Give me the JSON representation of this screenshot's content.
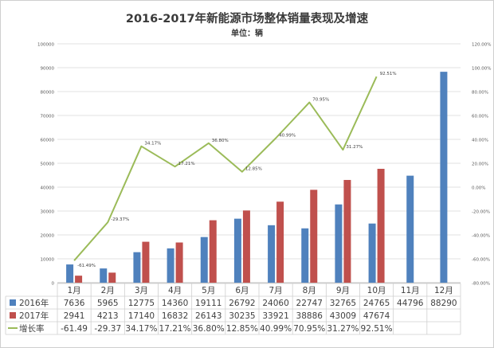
{
  "chart_data": {
    "type": "bar",
    "title": "2016-2017年新能源市场整体销量表现及增速",
    "subtitle": "单位：辆",
    "categories": [
      "1月",
      "2月",
      "3月",
      "4月",
      "5月",
      "6月",
      "7月",
      "8月",
      "9月",
      "10月",
      "11月",
      "12月"
    ],
    "series": [
      {
        "name": "2016年",
        "type": "bar",
        "axis": "left",
        "color": "#4f81bd",
        "values": [
          7636,
          5965,
          12775,
          14360,
          19111,
          26792,
          24060,
          22747,
          32765,
          24765,
          44796,
          88290
        ],
        "labels": [
          "7636",
          "5965",
          "12775",
          "14360",
          "19111",
          "26792",
          "24060",
          "22747",
          "32765",
          "24765",
          "44796",
          "88290"
        ]
      },
      {
        "name": "2017年",
        "type": "bar",
        "axis": "left",
        "color": "#c0504d",
        "values": [
          2941,
          4213,
          17140,
          16832,
          26143,
          30235,
          33921,
          38886,
          43009,
          47674,
          null,
          null
        ],
        "labels": [
          "2941",
          "4213",
          "17140",
          "16832",
          "26143",
          "30235",
          "33921",
          "38886",
          "43009",
          "47674",
          "",
          ""
        ]
      },
      {
        "name": "增长率",
        "type": "line",
        "axis": "right",
        "color": "#9bbb59",
        "values": [
          -61.49,
          -29.37,
          34.17,
          17.21,
          36.8,
          12.85,
          40.99,
          70.95,
          31.27,
          92.51,
          null,
          null
        ],
        "labels": [
          "-61.49",
          "-29.37",
          "34.17%",
          "17.21%",
          "36.80%",
          "12.85%",
          "40.99%",
          "70.95%",
          "31.27%",
          "92.51%",
          "",
          ""
        ],
        "point_labels": [
          "-61.49%",
          "-29.37%",
          "34.17%",
          "17.21%",
          "36.80%",
          "12.85%",
          "40.99%",
          "70.95%",
          "31.27%",
          "92.51%",
          "",
          ""
        ]
      }
    ],
    "y_left": {
      "min": 0,
      "max": 100000,
      "step": 10000,
      "ticks": [
        "0",
        "10000",
        "20000",
        "30000",
        "40000",
        "50000",
        "60000",
        "70000",
        "80000",
        "90000",
        "100000"
      ]
    },
    "y_right": {
      "min": -80,
      "max": 120,
      "step": 20,
      "ticks": [
        "-80.00%",
        "-60.00%",
        "-40.00%",
        "-20.00%",
        "0.00%",
        "20.00%",
        "40.00%",
        "60.00%",
        "80.00%",
        "100.00%",
        "120.00%"
      ]
    },
    "grid": true,
    "legend": "data-table"
  }
}
